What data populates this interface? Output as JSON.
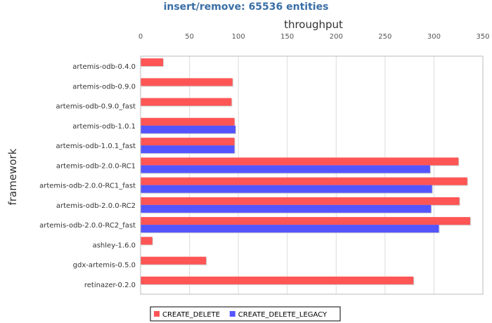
{
  "chart_data": {
    "type": "bar",
    "orientation": "horizontal",
    "title": "insert/remove: 65536 entities",
    "xlabel": "throughput",
    "ylabel": "framework",
    "xlim": [
      0,
      350
    ],
    "x_ticks": [
      "0",
      "50",
      "100",
      "150",
      "200",
      "250",
      "300",
      "350"
    ],
    "x_axis_position": "top",
    "grid": true,
    "legend_position": "bottom",
    "categories": [
      "artemis-odb-0.4.0",
      "artemis-odb-0.9.0",
      "artemis-odb-0.9.0_fast",
      "artemis-odb-1.0.1",
      "artemis-odb-1.0.1_fast",
      "artemis-odb-2.0.0-RC1",
      "artemis-odb-2.0.0-RC1_fast",
      "artemis-odb-2.0.0-RC2",
      "artemis-odb-2.0.0-RC2_fast",
      "ashley-1.6.0",
      "gdx-artemis-0.5.0",
      "retinazer-0.2.0"
    ],
    "series": [
      {
        "name": "CREATE_DELETE",
        "color": "#ff5555",
        "values": [
          23,
          94,
          93,
          96,
          96,
          325,
          334,
          326,
          337,
          12,
          67,
          279
        ]
      },
      {
        "name": "CREATE_DELETE_LEGACY",
        "color": "#5555ff",
        "values": [
          null,
          null,
          null,
          97,
          96,
          296,
          298,
          297,
          305,
          null,
          null,
          null
        ]
      }
    ]
  }
}
